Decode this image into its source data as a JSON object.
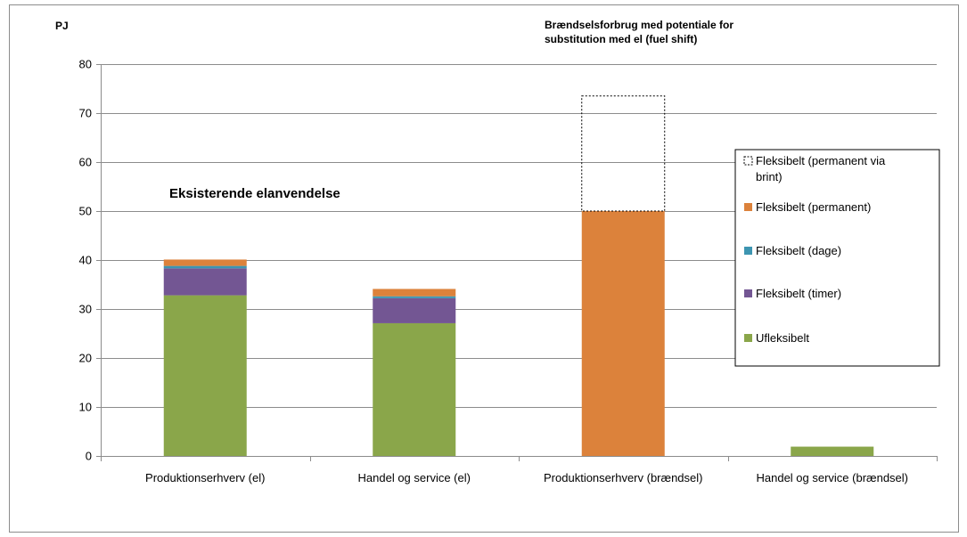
{
  "chart_data": {
    "type": "bar",
    "stacked": true,
    "unit_label": "PJ",
    "title_lines": [
      "Brændselsforbrug med potentiale for",
      "substitution med el (fuel shift)"
    ],
    "annotation": "Eksisterende elanvendelse",
    "categories": [
      "Produktionserhverv (el)",
      "Handel og service (el)",
      "Produktionserhverv (brændsel)",
      "Handel og service (brændsel)"
    ],
    "ylim": [
      0,
      80
    ],
    "yticks": [
      0,
      10,
      20,
      30,
      40,
      50,
      60,
      70,
      80
    ],
    "grid": true,
    "legend_position": "right",
    "series": [
      {
        "name": "Ufleksibelt",
        "color": "#8aa64a",
        "values": [
          32.8,
          27.1,
          0,
          1.9
        ]
      },
      {
        "name": "Fleksibelt (timer)",
        "color": "#735693",
        "values": [
          5.5,
          5.1,
          0,
          0
        ]
      },
      {
        "name": "Fleksibelt (dage)",
        "color": "#3d95b1",
        "values": [
          0.5,
          0.4,
          0,
          0
        ]
      },
      {
        "name": "Fleksibelt (permanent)",
        "color": "#dc823b",
        "values": [
          1.3,
          1.5,
          50.0,
          0
        ]
      },
      {
        "name": "Fleksibelt (permanent via brint)",
        "color": "none",
        "dashed": true,
        "values": [
          0,
          0,
          23.5,
          0
        ]
      }
    ],
    "legend_entries": [
      {
        "label_lines": [
          "Fleksibelt (permanent via",
          "brint)"
        ],
        "color": "none",
        "dashed": true
      },
      {
        "label_lines": [
          "Fleksibelt (permanent)"
        ],
        "color": "#dc823b"
      },
      {
        "label_lines": [
          "Fleksibelt (dage)"
        ],
        "color": "#3d95b1"
      },
      {
        "label_lines": [
          "Fleksibelt (timer)"
        ],
        "color": "#735693"
      },
      {
        "label_lines": [
          "Ufleksibelt"
        ],
        "color": "#8aa64a"
      }
    ]
  }
}
